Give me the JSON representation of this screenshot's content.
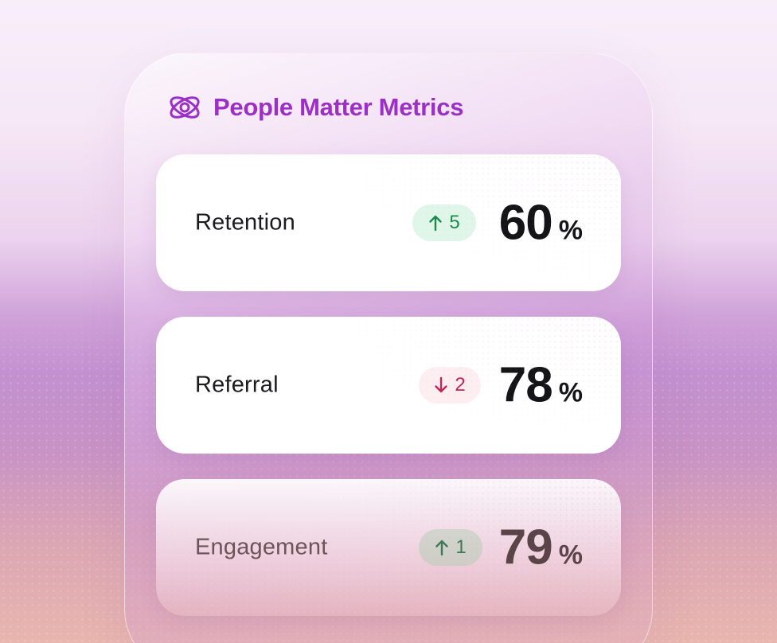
{
  "header": {
    "title": "People Matter Metrics",
    "logo_icon": "orbit-at-icon"
  },
  "metrics": [
    {
      "label": "Retention",
      "trend": "up",
      "delta": "5",
      "value": "60",
      "unit": "%"
    },
    {
      "label": "Referral",
      "trend": "down",
      "delta": "2",
      "value": "78",
      "unit": "%"
    },
    {
      "label": "Engagement",
      "trend": "up",
      "delta": "1",
      "value": "79",
      "unit": "%"
    }
  ],
  "colors": {
    "accent": "#9b2fc6",
    "up": "#1c8a4e",
    "up_bg": "#dff6e8",
    "down": "#c2255b",
    "down_bg": "#fdeef2"
  }
}
